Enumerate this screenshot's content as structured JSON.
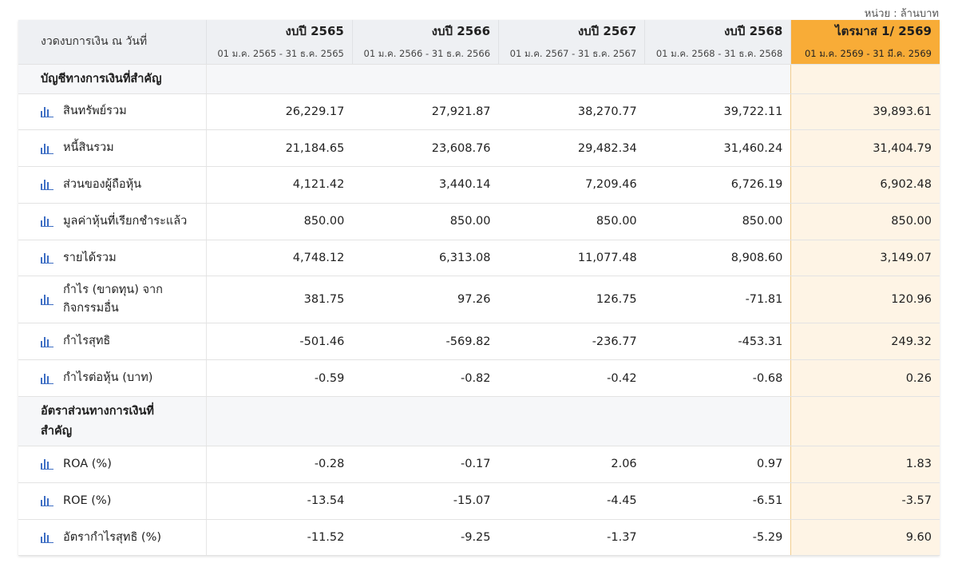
{
  "unit_note": "หน่วย : ล้านบาท",
  "header": {
    "label": "งวดงบการเงิน ณ วันที่",
    "periods": [
      {
        "title": "งบปี 2565",
        "range": "01 ม.ค. 2565 - 31 ธ.ค. 2565"
      },
      {
        "title": "งบปี 2566",
        "range": "01 ม.ค. 2566 - 31 ธ.ค. 2566"
      },
      {
        "title": "งบปี 2567",
        "range": "01 ม.ค. 2567 - 31 ธ.ค. 2567"
      },
      {
        "title": "งบปี 2568",
        "range": "01 ม.ค. 2568 - 31 ธ.ค. 2568"
      },
      {
        "title": "ไตรมาส 1/ 2569",
        "range": "01 ม.ค. 2569 - 31 มี.ค. 2569"
      }
    ]
  },
  "sections": [
    {
      "title": "บัญชีทางการเงินที่สำคัญ",
      "rows": [
        {
          "label": "สินทรัพย์รวม",
          "values": [
            "26,229.17",
            "27,921.87",
            "38,270.77",
            "39,722.11",
            "39,893.61"
          ]
        },
        {
          "label": "หนี้สินรวม",
          "values": [
            "21,184.65",
            "23,608.76",
            "29,482.34",
            "31,460.24",
            "31,404.79"
          ]
        },
        {
          "label": "ส่วนของผู้ถือหุ้น",
          "values": [
            "4,121.42",
            "3,440.14",
            "7,209.46",
            "6,726.19",
            "6,902.48"
          ]
        },
        {
          "label": "มูลค่าหุ้นที่เรียกชำระแล้ว",
          "values": [
            "850.00",
            "850.00",
            "850.00",
            "850.00",
            "850.00"
          ]
        },
        {
          "label": "รายได้รวม",
          "values": [
            "4,748.12",
            "6,313.08",
            "11,077.48",
            "8,908.60",
            "3,149.07"
          ]
        },
        {
          "label_line1": "กำไร (ขาดทุน) จาก",
          "label_line2": "กิจกรรมอื่น",
          "values": [
            "381.75",
            "97.26",
            "126.75",
            "-71.81",
            "120.96"
          ]
        },
        {
          "label": "กำไรสุทธิ",
          "values": [
            "-501.46",
            "-569.82",
            "-236.77",
            "-453.31",
            "249.32"
          ]
        },
        {
          "label": "กำไรต่อหุ้น (บาท)",
          "values": [
            "-0.59",
            "-0.82",
            "-0.42",
            "-0.68",
            "0.26"
          ]
        }
      ]
    },
    {
      "title_line1": "อัตราส่วนทางการเงินที่",
      "title_line2": "สำคัญ",
      "rows": [
        {
          "label": "ROA (%)",
          "values": [
            "-0.28",
            "-0.17",
            "2.06",
            "0.97",
            "1.83"
          ]
        },
        {
          "label": "ROE (%)",
          "values": [
            "-13.54",
            "-15.07",
            "-4.45",
            "-6.51",
            "-3.57"
          ]
        },
        {
          "label": "อัตรากำไรสุทธิ (%)",
          "values": [
            "-11.52",
            "-9.25",
            "-1.37",
            "-5.29",
            "9.60"
          ]
        }
      ]
    }
  ],
  "colors": {
    "highlight_header": "#f8ac37",
    "highlight_column": "#fef4e5",
    "icon": "#3f6fc4"
  },
  "icons": {
    "row_chart": "bar-chart-icon"
  }
}
